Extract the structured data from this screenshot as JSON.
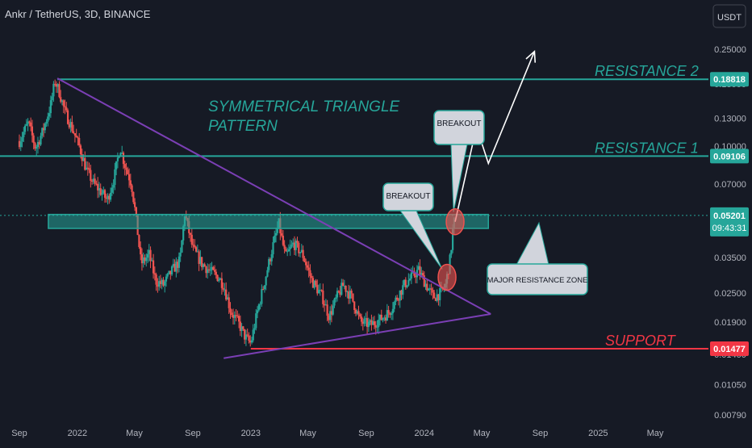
{
  "header": {
    "symbol_title": "Ankr / TetherUS, 3D, BINANCE"
  },
  "currency_button": {
    "label": "USDT"
  },
  "chart_data": {
    "type": "candlestick",
    "scale": "log",
    "ylim": [
      0.0079,
      0.3
    ],
    "xlim": [
      "2021-09-01",
      "2025-06-01"
    ],
    "grid": false,
    "y_ticks": [
      "0.25000",
      "0.18000",
      "0.13000",
      "0.10000",
      "0.07000",
      "0.05000",
      "0.03500",
      "0.02500",
      "0.01900",
      "0.01400",
      "0.01050",
      "0.00790"
    ],
    "y_tick_values": [
      0.25,
      0.18,
      0.13,
      0.1,
      0.07,
      0.05,
      0.035,
      0.025,
      0.019,
      0.014,
      0.0105,
      0.0079
    ],
    "x_ticks": [
      {
        "label": "Sep",
        "date": "2021-09-01"
      },
      {
        "label": "2022",
        "date": "2022-01-01"
      },
      {
        "label": "May",
        "date": "2022-05-01"
      },
      {
        "label": "Sep",
        "date": "2022-09-01"
      },
      {
        "label": "2023",
        "date": "2023-01-01"
      },
      {
        "label": "May",
        "date": "2023-05-01"
      },
      {
        "label": "Sep",
        "date": "2023-09-01"
      },
      {
        "label": "2024",
        "date": "2024-01-01"
      },
      {
        "label": "May",
        "date": "2024-05-01"
      },
      {
        "label": "Sep",
        "date": "2024-09-01"
      },
      {
        "label": "2025",
        "date": "2025-01-01"
      },
      {
        "label": "May",
        "date": "2025-05-01"
      }
    ],
    "price_path": [
      [
        "2021-09-01",
        0.105
      ],
      [
        "2021-09-20",
        0.125
      ],
      [
        "2021-10-05",
        0.098
      ],
      [
        "2021-10-20",
        0.115
      ],
      [
        "2021-11-05",
        0.145
      ],
      [
        "2021-11-15",
        0.185
      ],
      [
        "2021-11-25",
        0.165
      ],
      [
        "2021-12-05",
        0.14
      ],
      [
        "2021-12-20",
        0.12
      ],
      [
        "2022-01-05",
        0.1
      ],
      [
        "2022-01-20",
        0.08
      ],
      [
        "2022-02-05",
        0.07
      ],
      [
        "2022-02-20",
        0.065
      ],
      [
        "2022-03-05",
        0.06
      ],
      [
        "2022-03-20",
        0.075
      ],
      [
        "2022-04-01",
        0.1
      ],
      [
        "2022-04-10",
        0.085
      ],
      [
        "2022-04-25",
        0.07
      ],
      [
        "2022-05-05",
        0.05
      ],
      [
        "2022-05-15",
        0.033
      ],
      [
        "2022-06-01",
        0.036
      ],
      [
        "2022-06-15",
        0.028
      ],
      [
        "2022-07-01",
        0.027
      ],
      [
        "2022-07-20",
        0.031
      ],
      [
        "2022-08-05",
        0.034
      ],
      [
        "2022-08-15",
        0.053
      ],
      [
        "2022-09-01",
        0.038
      ],
      [
        "2022-09-20",
        0.033
      ],
      [
        "2022-10-05",
        0.031
      ],
      [
        "2022-10-25",
        0.029
      ],
      [
        "2022-11-05",
        0.027
      ],
      [
        "2022-11-20",
        0.021
      ],
      [
        "2022-12-05",
        0.019
      ],
      [
        "2022-12-20",
        0.0165
      ],
      [
        "2023-01-01",
        0.0155
      ],
      [
        "2023-01-15",
        0.021
      ],
      [
        "2023-02-01",
        0.029
      ],
      [
        "2023-02-15",
        0.038
      ],
      [
        "2023-03-01",
        0.048
      ],
      [
        "2023-03-15",
        0.035
      ],
      [
        "2023-04-01",
        0.04
      ],
      [
        "2023-04-20",
        0.036
      ],
      [
        "2023-05-10",
        0.028
      ],
      [
        "2023-06-01",
        0.024
      ],
      [
        "2023-06-15",
        0.02
      ],
      [
        "2023-07-01",
        0.024
      ],
      [
        "2023-07-15",
        0.027
      ],
      [
        "2023-08-01",
        0.024
      ],
      [
        "2023-08-20",
        0.019
      ],
      [
        "2023-09-10",
        0.0185
      ],
      [
        "2023-10-01",
        0.0195
      ],
      [
        "2023-10-20",
        0.021
      ],
      [
        "2023-11-05",
        0.024
      ],
      [
        "2023-11-20",
        0.027
      ],
      [
        "2023-12-05",
        0.029
      ],
      [
        "2023-12-20",
        0.031
      ],
      [
        "2024-01-05",
        0.027
      ],
      [
        "2024-01-20",
        0.024
      ],
      [
        "2024-02-05",
        0.025
      ],
      [
        "2024-02-15",
        0.027
      ],
      [
        "2024-02-25",
        0.035
      ],
      [
        "2024-03-01",
        0.045
      ],
      [
        "2024-03-06",
        0.052
      ]
    ],
    "horizontal_levels": [
      {
        "label": "RESISTANCE 2",
        "value": 0.18818,
        "price_tag": "0.18818",
        "color": "#26a69a"
      },
      {
        "label": "RESISTANCE 1",
        "value": 0.09106,
        "price_tag": "0.09106",
        "color": "#26a69a"
      },
      {
        "label": "SUPPORT",
        "value": 0.01477,
        "price_tag": "0.01477",
        "color": "#f23645"
      }
    ],
    "last_price": {
      "price_tag": "0.05201",
      "countdown": "09:43:31",
      "color": "#26a69a"
    },
    "zone": {
      "label": "MAJOR RESISTANCE ZONE",
      "from_date": "2021-11-01",
      "to_date": "2024-05-15",
      "low": 0.046,
      "high": 0.0525
    },
    "triangle": {
      "title": [
        "SYMMETRICAL TRIANGLE",
        "PATTERN"
      ],
      "upper": [
        [
          "2021-11-20",
          0.19
        ],
        [
          "2024-05-20",
          0.0205
        ]
      ],
      "lower": [
        [
          "2022-11-05",
          0.0135
        ],
        [
          "2024-05-20",
          0.0205
        ]
      ]
    },
    "breakouts": [
      {
        "label": "BREAKOUT",
        "date": "2024-02-18",
        "value": 0.029
      },
      {
        "label": "BREAKOUT",
        "date": "2024-03-06",
        "value": 0.049
      }
    ],
    "projection_arrow": [
      [
        "2024-03-06",
        0.049
      ],
      [
        "2024-04-20",
        0.12
      ],
      [
        "2024-05-15",
        0.085
      ],
      [
        "2024-08-20",
        0.245
      ]
    ]
  },
  "colors": {
    "background": "#161a25",
    "bull": "#26a69a",
    "bear": "#ef5350",
    "text": "#b2b5be",
    "triangle": "#7b3fb5",
    "zone": "#26a69a",
    "arrow": "#ffffff"
  }
}
